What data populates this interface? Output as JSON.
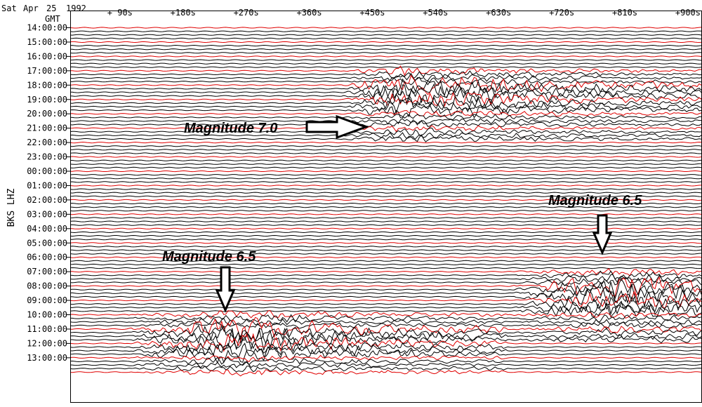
{
  "header": {
    "day": "Sat",
    "month": "Apr",
    "date": "25",
    "year": "1992",
    "timezone": "GMT"
  },
  "chart_data": {
    "type": "line",
    "title": "",
    "ylabel": "BKS LHZ",
    "x_tick_labels": [
      "+ 90s",
      "+180s",
      "+270s",
      "+360s",
      "+450s",
      "+540s",
      "+630s",
      "+720s",
      "+810s",
      "+900s"
    ],
    "x_ticks_seconds": [
      90,
      180,
      270,
      360,
      450,
      540,
      630,
      720,
      810,
      900
    ],
    "xlim": [
      0,
      900
    ],
    "hour_labels": [
      "14:00:00",
      "15:00:00",
      "16:00:00",
      "17:00:00",
      "18:00:00",
      "19:00:00",
      "20:00:00",
      "21:00:00",
      "22:00:00",
      "23:00:00",
      "00:00:00",
      "01:00:00",
      "02:00:00",
      "03:00:00",
      "04:00:00",
      "05:00:00",
      "06:00:00",
      "07:00:00",
      "08:00:00",
      "09:00:00",
      "10:00:00",
      "11:00:00",
      "12:00:00",
      "13:00:00"
    ],
    "traces_per_hour": 4,
    "trace_colors": [
      "#e00000",
      "#000000",
      "#000000",
      "#000000"
    ],
    "events": [
      {
        "label": "Magnitude 7.0",
        "color": "#e00000",
        "start_hour": "18:00:00",
        "start_offset_s": 390,
        "peak_offset_s": 470,
        "end_offset_s": 900
      },
      {
        "label": "Magnitude 6.5",
        "color": "#000000",
        "start_hour": "08:00:00",
        "start_offset_s": 630,
        "peak_offset_s": 760,
        "end_offset_s": 900
      },
      {
        "label": "Magnitude 6.5",
        "color": "#000000",
        "start_hour": "11:00:00",
        "start_offset_s": 80,
        "peak_offset_s": 230,
        "end_offset_s": 620
      }
    ]
  }
}
